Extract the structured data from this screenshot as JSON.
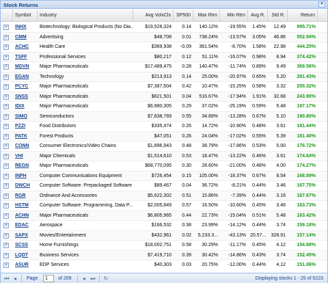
{
  "panel": {
    "title": "Stock Returns"
  },
  "columns": [
    "Symbol",
    "Industry",
    "Avg VolxCls",
    "SP500",
    "Max Rtrn",
    "Min Rtrn",
    "Avg R.",
    "Std R.",
    "Return"
  ],
  "rows": [
    [
      "INHX",
      "Biotechnology: Biological Products (No Dia...",
      "$19,528,324",
      "0.14",
      "140.12%",
      "-19.55%",
      "1.45%",
      "12.49",
      "995.71%"
    ],
    [
      "CMM",
      "Advertising",
      "$48,708",
      "0.01",
      "738.24%",
      "-13.57%",
      "3.05%",
      "46.86",
      "552.94%"
    ],
    [
      "ACHC",
      "Health Care",
      "$369,938",
      "-0.09",
      "361.54%",
      "-8.70%",
      "1.58%",
      "22.98",
      "444.25%"
    ],
    [
      "TSFF",
      "Professional Services",
      "$80,217",
      "0.12",
      "51.11%",
      "-16.07%",
      "0.98%",
      "8.94",
      "374.42%"
    ],
    [
      "MDVN",
      "Major Pharmaceuticals",
      "$17,489,475",
      "0.28",
      "140.47%",
      "-11.74%",
      "0.89%",
      "9.49",
      "369.56%"
    ],
    [
      "EGAN",
      "Technology",
      "$213,913",
      "0.14",
      "25.00%",
      "-20.97%",
      "0.65%",
      "5.20",
      "281.43%"
    ],
    [
      "PCYC",
      "Major Pharmaceuticals",
      "$7,387,504",
      "0.42",
      "10.47%",
      "-15.25%",
      "0.58%",
      "3.32",
      "255.32%"
    ],
    [
      "SNSS",
      "Major Pharmaceuticals",
      "$621,501",
      "0.04",
      "516.67%",
      "-17.94%",
      "1.91%",
      "32.68",
      "243.90%"
    ],
    [
      "IDIX",
      "Major Pharmaceuticals",
      "$6,980,305",
      "0.29",
      "37.02%",
      "-25.19%",
      "0.59%",
      "5.48",
      "197.17%"
    ],
    [
      "SIMO",
      "Semiconductors",
      "$7,838,769",
      "0.55",
      "34.89%",
      "-13.28%",
      "0.67%",
      "5.10",
      "190.80%"
    ],
    [
      "PZZI",
      "Food Distributors",
      "$335,474",
      "0.26",
      "14.72%",
      "-10.90%",
      "0.48%",
      "3.61",
      "181.44%"
    ],
    [
      "PATK",
      "Forest Products",
      "$47,051",
      "0.26",
      "24.04%",
      "-17.02%",
      "0.55%",
      "5.39",
      "181.40%"
    ],
    [
      "CONN",
      "Consumer Electronics/Video Chains",
      "$1,896,943",
      "0.48",
      "38.79%",
      "-17.86%",
      "0.53%",
      "5.00",
      "176.72%"
    ],
    [
      "VHI",
      "Major Chemicals",
      "$1,514,610",
      "0.53",
      "18.47%",
      "-13.22%",
      "0.46%",
      "3.61",
      "174.64%"
    ],
    [
      "REGN",
      "Major Pharmaceuticals",
      "$68,770,095",
      "0.30",
      "28.60%",
      "-21.00%",
      "0.48%",
      "4.00",
      "174.27%"
    ],
    [
      "INPH",
      "Computer Communications Equipment",
      "$726,454",
      "0.15",
      "105.00%",
      "-18.37%",
      "0.67%",
      "8.54",
      "168.59%"
    ],
    [
      "DWCH",
      "Computer Software: Prepackaged Software",
      "$89,467",
      "0.04",
      "36.72%",
      "-8.21%",
      "0.44%",
      "3.46",
      "167.75%"
    ],
    [
      "RGR",
      "Ordnance And Accessories",
      "$5,622,302",
      "0.51",
      "15.86%",
      "-7.39%",
      "0.44%",
      "3.16",
      "167.67%"
    ],
    [
      "HSTM",
      "Computer Software: Programming, Data P...",
      "$2,005,849",
      "0.57",
      "16.50%",
      "-10.60%",
      "0.45%",
      "3.46",
      "163.73%"
    ],
    [
      "ACHN",
      "Major Pharmaceuticals",
      "$6,805,965",
      "0.44",
      "22.73%",
      "-15.04%",
      "0.51%",
      "5.48",
      "163.42%"
    ],
    [
      "EDAC",
      "Aerospace",
      "$166,532",
      "0.38",
      "23.99%",
      "-14.12%",
      "0.44%",
      "3.74",
      "159.18%"
    ],
    [
      "SAPX",
      "Movies/Entertainment",
      "$432,961",
      "0.02",
      "5,233.3...",
      "-43.13%",
      "20.57...",
      "328.91",
      "157.14%"
    ],
    [
      "SCSS",
      "Home Furnishings",
      "$18,002,751",
      "0.58",
      "30.29%",
      "-11.17%",
      "0.45%",
      "4.12",
      "154.68%"
    ],
    [
      "LQDT",
      "Business Services",
      "$7,419,710",
      "0.39",
      "30.42%",
      "-14.86%",
      "0.43%",
      "3.74",
      "152.45%"
    ],
    [
      "ASUR",
      "EDP Services",
      "$40,303",
      "0.03",
      "20.75%",
      "-12.00%",
      "0.44%",
      "4.12",
      "151.06%"
    ]
  ],
  "paging": {
    "page_label": "Page",
    "page_value": "1",
    "of_label": "of 209",
    "display_text": "Displaying stocks 1 - 25 of 5223"
  },
  "icons": {
    "expander": "plus-box-icon",
    "first": "first-page-icon",
    "prev": "prev-page-icon",
    "next": "next-page-icon",
    "last": "last-page-icon",
    "refresh": "refresh-icon",
    "collapse": "collapse-icon"
  },
  "colors": {
    "symbol": "#15428b",
    "return": "#1a9a1a",
    "title": "#15428b"
  }
}
